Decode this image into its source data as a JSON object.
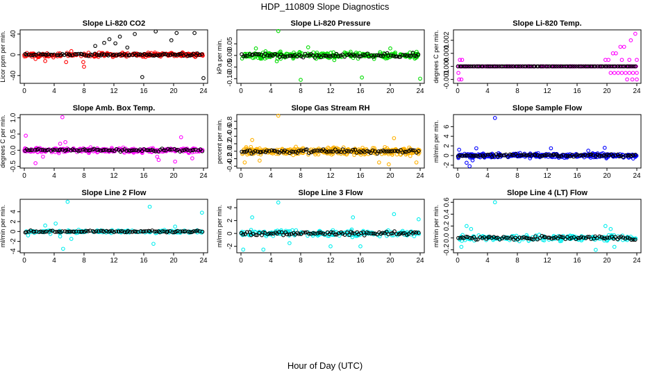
{
  "figure": {
    "title": "HDP_110809  Slope Diagnostics",
    "xlabel": "Hour of Day (UTC)"
  },
  "chart_data": [
    {
      "type": "scatter",
      "title": "Slope Li-820 CO2",
      "ylabel": "Licor ppm per min.",
      "color": "#ff0000",
      "xlim": [
        0,
        24
      ],
      "ylim": [
        -55,
        48
      ],
      "xticks": [
        0,
        4,
        8,
        12,
        16,
        20,
        24
      ],
      "yticks": [
        -40,
        0,
        40
      ],
      "yticks_text": [
        "-40",
        "0",
        "40"
      ],
      "spread": 3,
      "dense_density": 1.2,
      "outliers": [
        [
          9.5,
          17
        ],
        [
          10.7,
          23
        ],
        [
          11.4,
          30
        ],
        [
          12.2,
          22
        ],
        [
          12.8,
          35
        ],
        [
          13.8,
          14
        ],
        [
          14.8,
          40
        ],
        [
          15.8,
          -43
        ],
        [
          17.6,
          45
        ],
        [
          19.7,
          28
        ],
        [
          20.4,
          42
        ],
        [
          22.8,
          42
        ],
        [
          24,
          -45
        ],
        [
          8,
          -23
        ],
        [
          7.9,
          -14
        ],
        [
          1.5,
          -8
        ],
        [
          2.8,
          -12
        ],
        [
          5.6,
          -14
        ],
        [
          3.9,
          -5
        ],
        [
          6.3,
          7
        ]
      ]
    },
    {
      "type": "scatter",
      "title": "Slope Li-820 Pressure",
      "ylabel": "kPa per min.",
      "color": "#00dd00",
      "xlim": [
        0,
        24
      ],
      "ylim": [
        -0.12,
        0.11
      ],
      "xticks": [
        0,
        4,
        8,
        12,
        16,
        20,
        24
      ],
      "yticks": [
        -0.1,
        -0.05,
        0,
        0.05
      ],
      "yticks_text": [
        "-0.10",
        "-0.05",
        "0.00",
        "0.05"
      ],
      "spread": 0.012,
      "dense_density": 1.3,
      "outliers": [
        [
          5,
          0.105
        ],
        [
          8,
          -0.105
        ],
        [
          16.2,
          -0.095
        ],
        [
          24,
          -0.1
        ],
        [
          9,
          0.035
        ],
        [
          4.8,
          -0.025
        ],
        [
          12.5,
          -0.02
        ],
        [
          2,
          0.03
        ],
        [
          20,
          0.03
        ]
      ]
    },
    {
      "type": "scatter",
      "title": "Slope Li-820 Temp.",
      "ylabel": "degrees C per min.",
      "color": "#ff00ff",
      "xlim": [
        0,
        24
      ],
      "ylim": [
        -0.0013,
        0.0028
      ],
      "xticks": [
        0,
        4,
        8,
        12,
        16,
        20,
        24
      ],
      "yticks": [
        -0.001,
        0,
        0.001,
        0.002
      ],
      "yticks_text": [
        "-0.001",
        "0.000",
        "0.001",
        "0.002"
      ],
      "quantized": [
        0.0
      ],
      "spread": 0,
      "dense_density": 1,
      "outliers": [
        [
          0.3,
          0.0005
        ],
        [
          0.6,
          0.0005
        ],
        [
          0.1,
          -0.0005
        ],
        [
          0.2,
          -0.001
        ],
        [
          0.5,
          -0.001
        ],
        [
          19.8,
          0.0005
        ],
        [
          20.2,
          0.0005
        ],
        [
          20.8,
          0.001
        ],
        [
          21.2,
          0.001
        ],
        [
          21.8,
          0.0015
        ],
        [
          22.3,
          0.0015
        ],
        [
          23.2,
          0.002
        ],
        [
          23.8,
          0.0025
        ],
        [
          20.5,
          -0.0005
        ],
        [
          21,
          -0.0005
        ],
        [
          21.5,
          -0.0005
        ],
        [
          22,
          -0.0005
        ],
        [
          22.5,
          -0.0005
        ],
        [
          23,
          -0.0005
        ],
        [
          23.5,
          -0.0005
        ],
        [
          24,
          -0.0005
        ],
        [
          22.7,
          -0.001
        ],
        [
          23.4,
          -0.001
        ],
        [
          24,
          -0.001
        ],
        [
          22,
          0.0005
        ],
        [
          23,
          0.0005
        ],
        [
          24,
          0.0005
        ]
      ]
    },
    {
      "type": "scatter",
      "title": "Slope Amb. Box Temp.",
      "ylabel": "degrees C per min.",
      "color": "#ff00ff",
      "xlim": [
        0,
        24
      ],
      "ylim": [
        -0.55,
        1.1
      ],
      "xticks": [
        0,
        4,
        8,
        12,
        16,
        20,
        24
      ],
      "yticks": [
        -0.5,
        0,
        0.5,
        1.0
      ],
      "yticks_text": [
        "-0.5",
        "0.0",
        "0.5",
        "1.0"
      ],
      "spread": 0.06,
      "dense_density": 1.4,
      "outliers": [
        [
          5.1,
          1.02
        ],
        [
          1.5,
          -0.4
        ],
        [
          0.2,
          0.45
        ],
        [
          4.8,
          0.2
        ],
        [
          5.5,
          0.25
        ],
        [
          21,
          0.4
        ],
        [
          20.2,
          -0.35
        ],
        [
          18,
          -0.3
        ],
        [
          22.5,
          -0.25
        ],
        [
          17.8,
          -0.2
        ],
        [
          2.5,
          -0.2
        ]
      ]
    },
    {
      "type": "scatter",
      "title": "Slope Gas Stream RH",
      "ylabel": "percent per min.",
      "color": "#ffb000",
      "xlim": [
        0,
        24
      ],
      "ylim": [
        -0.45,
        0.98
      ],
      "xticks": [
        0,
        4,
        8,
        12,
        16,
        20,
        24
      ],
      "yticks": [
        -0.4,
        -0.2,
        0,
        0.2,
        0.4,
        0.6,
        0.8
      ],
      "yticks_text": [
        "-0.4",
        "-0.2",
        "0.0",
        "0.2",
        "0.4",
        "0.6",
        "0.8"
      ],
      "spread": 0.08,
      "dense_density": 1.6,
      "outliers": [
        [
          5,
          0.95
        ],
        [
          1.5,
          0.3
        ],
        [
          20.5,
          0.35
        ],
        [
          19.8,
          -0.35
        ],
        [
          18.5,
          -0.3
        ],
        [
          23.5,
          -0.3
        ],
        [
          0.5,
          -0.3
        ],
        [
          2.5,
          -0.25
        ]
      ]
    },
    {
      "type": "scatter",
      "title": "Slope Sample Flow",
      "ylabel": "ml/min per min.",
      "color": "#0000ff",
      "xlim": [
        0,
        24
      ],
      "ylim": [
        -2.6,
        8.5
      ],
      "xticks": [
        0,
        4,
        8,
        12,
        16,
        20,
        24
      ],
      "yticks": [
        -2,
        0,
        2,
        4,
        6
      ],
      "yticks_text": [
        "-2",
        "0",
        "2",
        "4",
        "6"
      ],
      "spread": 0.4,
      "dense_density": 1.5,
      "outliers": [
        [
          5,
          7.8
        ],
        [
          1.6,
          -2.2
        ],
        [
          1.2,
          -1.5
        ],
        [
          2.5,
          1.5
        ],
        [
          12.5,
          1.5
        ],
        [
          19.7,
          1.6
        ],
        [
          0.2,
          1.2
        ],
        [
          17.5,
          1
        ],
        [
          2,
          -1
        ]
      ]
    },
    {
      "type": "scatter",
      "title": "Slope Line 2 Flow",
      "ylabel": "ml/min per min.",
      "color": "#00eeee",
      "xlim": [
        0,
        24
      ],
      "ylim": [
        -4.3,
        6.5
      ],
      "xticks": [
        0,
        4,
        8,
        12,
        16,
        20,
        24
      ],
      "yticks": [
        -4,
        -2,
        0,
        2,
        4
      ],
      "yticks_text": [
        "-4",
        "-2",
        "0",
        "2",
        "4"
      ],
      "spread": 0.25,
      "dense_density": 0.7,
      "outliers": [
        [
          5.8,
          6
        ],
        [
          16.8,
          5
        ],
        [
          23.8,
          3.8
        ],
        [
          5.2,
          -3.5
        ],
        [
          17.3,
          -2.5
        ],
        [
          4.8,
          -1
        ],
        [
          6.3,
          -1.5
        ],
        [
          0.5,
          -0.8
        ],
        [
          2.8,
          1.2
        ],
        [
          4.2,
          1.6
        ],
        [
          20.2,
          1
        ],
        [
          3.5,
          -0.5
        ]
      ]
    },
    {
      "type": "scatter",
      "title": "Slope Line 3 Flow",
      "ylabel": "ml/min per min.",
      "color": "#00eeee",
      "xlim": [
        0,
        24
      ],
      "ylim": [
        -3,
        5.3
      ],
      "xticks": [
        0,
        4,
        8,
        12,
        16,
        20,
        24
      ],
      "yticks": [
        -2,
        0,
        2,
        4
      ],
      "yticks_text": [
        "-2",
        "0",
        "2",
        "4"
      ],
      "spread": 0.4,
      "dense_density": 0.9,
      "outliers": [
        [
          5,
          4.8
        ],
        [
          23.8,
          2.2
        ],
        [
          20.5,
          3
        ],
        [
          15,
          2.5
        ],
        [
          0.3,
          -2.5
        ],
        [
          3,
          -2.5
        ],
        [
          1.5,
          2.5
        ],
        [
          6.5,
          -1.5
        ],
        [
          12,
          -2
        ],
        [
          16,
          -2
        ]
      ]
    },
    {
      "type": "scatter",
      "title": "Slope Line 4 (LT) Flow",
      "ylabel": "ml/min per min.",
      "color": "#00eeee",
      "xlim": [
        0,
        24
      ],
      "ylim": [
        -0.25,
        0.65
      ],
      "xticks": [
        0,
        4,
        8,
        12,
        16,
        20,
        24
      ],
      "yticks": [
        -0.2,
        0,
        0.2,
        0.4,
        0.6
      ],
      "yticks_text": [
        "-0.2",
        "0.0",
        "0.2",
        "0.4",
        "0.6"
      ],
      "spread": 0.04,
      "dense_density": 0.9,
      "outliers": [
        [
          5,
          0.6
        ],
        [
          1.2,
          0.2
        ],
        [
          1.8,
          0.15
        ],
        [
          19.8,
          0.2
        ],
        [
          20.5,
          0.15
        ],
        [
          18.5,
          -0.2
        ],
        [
          0.5,
          -0.15
        ],
        [
          21,
          -0.15
        ]
      ]
    }
  ]
}
